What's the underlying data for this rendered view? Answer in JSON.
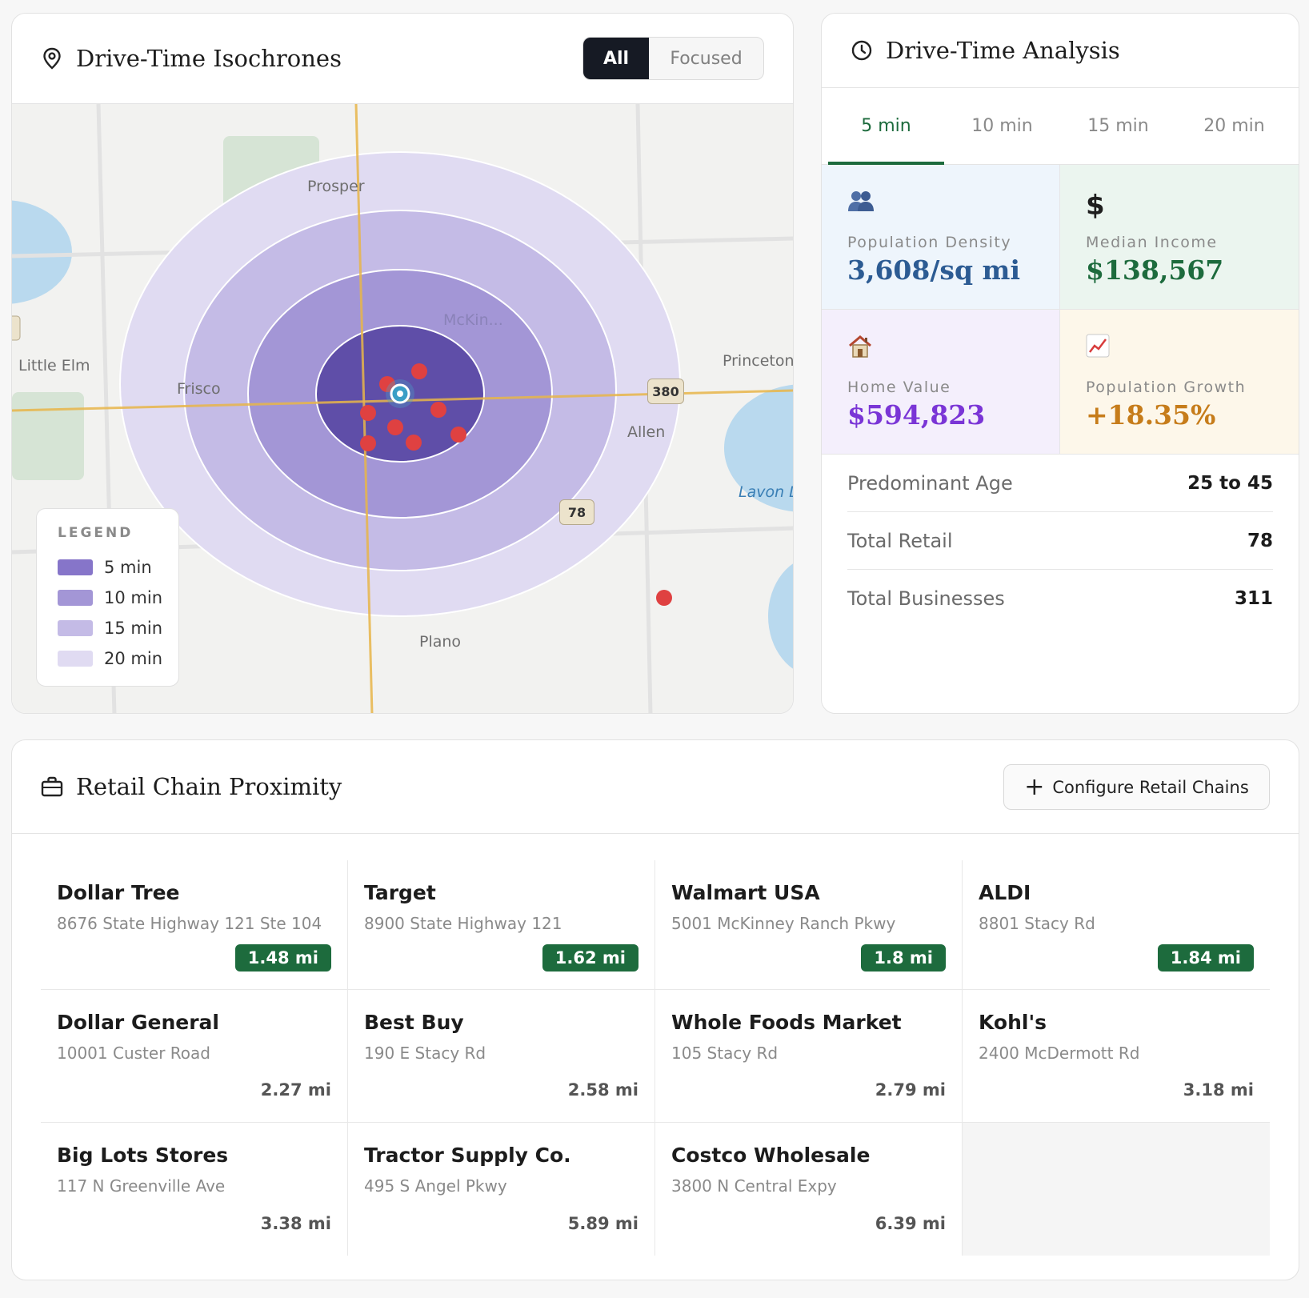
{
  "map_panel": {
    "title": "Drive-Time Isochrones",
    "title_icon": "map-pin-icon",
    "toggle": {
      "all_label": "All",
      "focused_label": "Focused",
      "selected": "All"
    },
    "places": {
      "prosper": "Prosper",
      "mckinney": "McKin...",
      "little_elm": "Little Elm",
      "frisco": "Frisco",
      "princeton": "Princeton",
      "allen": "Allen",
      "lavon": "Lavon L",
      "plano": "Plano"
    },
    "highway_shields": {
      "us380": "380",
      "sh78": "78"
    },
    "legend": {
      "title": "LEGEND",
      "items": [
        {
          "label": "5 min",
          "color": "#8675c9"
        },
        {
          "label": "10 min",
          "color": "#a396d6"
        },
        {
          "label": "15 min",
          "color": "#c4bbe6"
        },
        {
          "label": "20 min",
          "color": "#e0dbf2"
        }
      ]
    }
  },
  "analysis_panel": {
    "title": "Drive-Time Analysis",
    "title_icon": "clock-icon",
    "tabs": [
      "5 min",
      "10 min",
      "15 min",
      "20 min"
    ],
    "active_tab": "5 min",
    "tiles": {
      "density": {
        "icon": "people-icon",
        "label": "Population Density",
        "value": "3,608/sq mi",
        "color": "#2c5b93"
      },
      "income": {
        "icon": "dollar-icon",
        "label": "Median Income",
        "value": "$138,567",
        "color": "#1d6b3d"
      },
      "home": {
        "icon": "house-icon",
        "label": "Home Value",
        "value": "$594,823",
        "color": "#7a35d6"
      },
      "growth": {
        "icon": "chart-up-icon",
        "label": "Population Growth",
        "value": "+18.35%",
        "color": "#c67c1a"
      }
    },
    "stats": [
      {
        "label": "Predominant Age",
        "value": "25 to 45"
      },
      {
        "label": "Total Retail",
        "value": "78"
      },
      {
        "label": "Total Businesses",
        "value": "311"
      }
    ]
  },
  "retail_panel": {
    "title": "Retail Chain Proximity",
    "title_icon": "briefcase-icon",
    "configure_label": "Configure Retail Chains",
    "chains": [
      {
        "name": "Dollar Tree",
        "address": "8676 State Highway 121 Ste 104",
        "distance": "1.48 mi",
        "highlight": true
      },
      {
        "name": "Target",
        "address": "8900 State Highway 121",
        "distance": "1.62 mi",
        "highlight": true
      },
      {
        "name": "Walmart USA",
        "address": "5001 McKinney Ranch Pkwy",
        "distance": "1.8 mi",
        "highlight": true
      },
      {
        "name": "ALDI",
        "address": "8801 Stacy Rd",
        "distance": "1.84 mi",
        "highlight": true
      },
      {
        "name": "Dollar General",
        "address": "10001 Custer Road",
        "distance": "2.27 mi",
        "highlight": false
      },
      {
        "name": "Best Buy",
        "address": "190 E Stacy Rd",
        "distance": "2.58 mi",
        "highlight": false
      },
      {
        "name": "Whole Foods Market",
        "address": "105 Stacy Rd",
        "distance": "2.79 mi",
        "highlight": false
      },
      {
        "name": "Kohl's",
        "address": "2400 McDermott Rd",
        "distance": "3.18 mi",
        "highlight": false
      },
      {
        "name": "Big Lots Stores",
        "address": "117 N Greenville Ave",
        "distance": "3.38 mi",
        "highlight": false
      },
      {
        "name": "Tractor Supply Co.",
        "address": "495 S Angel Pkwy",
        "distance": "5.89 mi",
        "highlight": false
      },
      {
        "name": "Costco Wholesale",
        "address": "3800 N Central Expy",
        "distance": "6.39 mi",
        "highlight": false
      }
    ]
  }
}
